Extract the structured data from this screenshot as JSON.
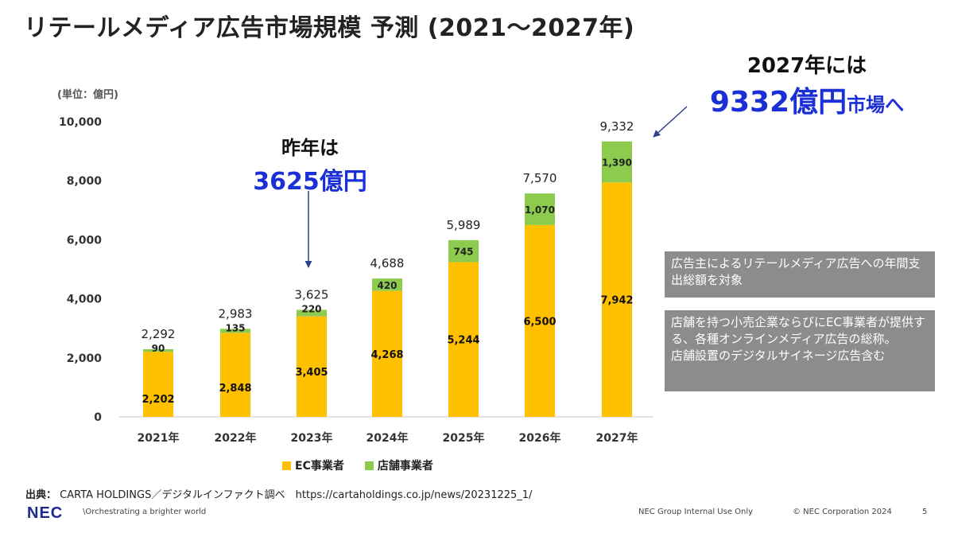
{
  "title": "リテールメディア広告市場規模 予測 (2021～2027年)",
  "unit_label": "(単位：億円)",
  "callout_last_year": {
    "line1": "昨年は",
    "line2": "3625億円"
  },
  "callout_2027": {
    "line1": "2027年には",
    "big": "9332億円",
    "small": "市場へ"
  },
  "notes": [
    "広告主によるリテールメディア広告への年間支出総額を対象",
    "店舗を持つ小売企業ならびにEC事業者が提供する、各種オンラインメディア広告の総称。\n店舗設置のデジタルサイネージ広告含む"
  ],
  "source": {
    "label": "出典：",
    "text": "CARTA HOLDINGS／デジタルインファクト調べ　https://cartaholdings.co.jp/news/20231225_1/"
  },
  "footer": {
    "logo": "NEC",
    "tagline": "\\Orchestrating a brighter world",
    "internal": "NEC Group Internal Use Only",
    "copyright": "© NEC Corporation 2024",
    "page": "5"
  },
  "colors": {
    "ec": "#FFC000",
    "store": "#8DCB4F",
    "axis": "#d9d9d9",
    "accent": "#1a2fd6"
  },
  "chart_data": {
    "type": "bar",
    "stacked": true,
    "categories": [
      "2021年",
      "2022年",
      "2023年",
      "2024年",
      "2025年",
      "2026年",
      "2027年"
    ],
    "series": [
      {
        "name": "EC事業者",
        "values": [
          2202,
          2848,
          3405,
          4268,
          5244,
          6500,
          7942
        ]
      },
      {
        "name": "店舗事業者",
        "values": [
          90,
          135,
          220,
          420,
          745,
          1070,
          1390
        ]
      }
    ],
    "totals": [
      "2,292",
      "2,983",
      "3,625",
      "4,688",
      "5,989",
      "7,570",
      "9,332"
    ],
    "ec_labels": [
      "2,202",
      "2,848",
      "3,405",
      "4,268",
      "5,244",
      "6,500",
      "7,942"
    ],
    "store_labels": [
      "90",
      "135",
      "220",
      "420",
      "745",
      "1,070",
      "1,390"
    ],
    "yticks": [
      "0",
      "2,000",
      "4,000",
      "6,000",
      "8,000",
      "10,000"
    ],
    "ylim": [
      0,
      10000
    ],
    "legend": [
      "EC事業者",
      "店舗事業者"
    ]
  }
}
